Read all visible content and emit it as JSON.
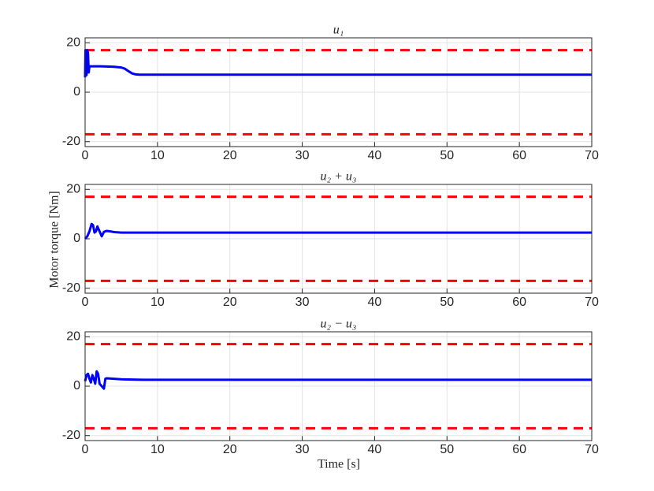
{
  "chart_data": [
    {
      "type": "line",
      "title": "u₁",
      "x": [
        0,
        0.05,
        0.1,
        0.2,
        0.3,
        0.4,
        0.5,
        0.6,
        1,
        2,
        3,
        4,
        5,
        5.5,
        6,
        6.5,
        7,
        7.5,
        8,
        10,
        20,
        30,
        40,
        50,
        60,
        70
      ],
      "series": [
        {
          "color": "#0000ff",
          "values": [
            6,
            17,
            16,
            7,
            17,
            16,
            8,
            10.5,
            10.5,
            10.5,
            10.4,
            10.3,
            10,
            9.5,
            8.5,
            7.6,
            7.2,
            7.1,
            7.1,
            7.1,
            7.1,
            7.1,
            7.1,
            7.1,
            7.1,
            7.1
          ]
        }
      ],
      "hlines": [
        17,
        -17
      ],
      "hline_color": "#ff0000",
      "xlim": [
        0,
        70
      ],
      "ylim": [
        -22,
        22
      ],
      "xticks": [
        0,
        10,
        20,
        30,
        40,
        50,
        60,
        70
      ],
      "yticks": [
        -20,
        0,
        20
      ],
      "grid": true
    },
    {
      "type": "line",
      "title": "u₂ + u₃",
      "ylabel": "Motor torque [Nm]",
      "x": [
        0,
        0.3,
        0.6,
        0.9,
        1.1,
        1.3,
        1.5,
        1.7,
        2,
        2.3,
        2.6,
        3,
        3.5,
        4,
        5,
        6,
        8,
        10,
        20,
        30,
        40,
        50,
        60,
        70
      ],
      "series": [
        {
          "color": "#0000ff",
          "values": [
            0,
            1,
            3,
            6,
            5.5,
            2.5,
            3,
            5,
            3,
            1,
            2.8,
            3.2,
            3,
            2.7,
            2.5,
            2.5,
            2.5,
            2.5,
            2.5,
            2.5,
            2.5,
            2.5,
            2.5,
            2.5
          ]
        }
      ],
      "hlines": [
        17,
        -17
      ],
      "hline_color": "#ff0000",
      "xlim": [
        0,
        70
      ],
      "ylim": [
        -22,
        22
      ],
      "xticks": [
        0,
        10,
        20,
        30,
        40,
        50,
        60,
        70
      ],
      "yticks": [
        -20,
        0,
        20
      ],
      "grid": true
    },
    {
      "type": "line",
      "title": "u₂ − u₃",
      "xlabel": "Time [s]",
      "x": [
        0,
        0.2,
        0.4,
        0.6,
        0.8,
        1,
        1.2,
        1.4,
        1.6,
        1.8,
        2,
        2.3,
        2.6,
        2.8,
        3,
        4,
        5,
        6,
        8,
        10,
        20,
        30,
        40,
        50,
        60,
        70
      ],
      "series": [
        {
          "color": "#0000ff",
          "values": [
            2,
            4.5,
            5,
            3,
            1.5,
            4.5,
            3,
            1,
            6,
            5,
            1,
            0,
            -1,
            3,
            3.2,
            3,
            2.8,
            2.7,
            2.6,
            2.6,
            2.6,
            2.6,
            2.6,
            2.6,
            2.6,
            2.6
          ]
        }
      ],
      "hlines": [
        17,
        -17
      ],
      "hline_color": "#ff0000",
      "xlim": [
        0,
        70
      ],
      "ylim": [
        -22,
        22
      ],
      "xticks": [
        0,
        10,
        20,
        30,
        40,
        50,
        60,
        70
      ],
      "yticks": [
        -20,
        0,
        20
      ],
      "grid": true
    }
  ]
}
